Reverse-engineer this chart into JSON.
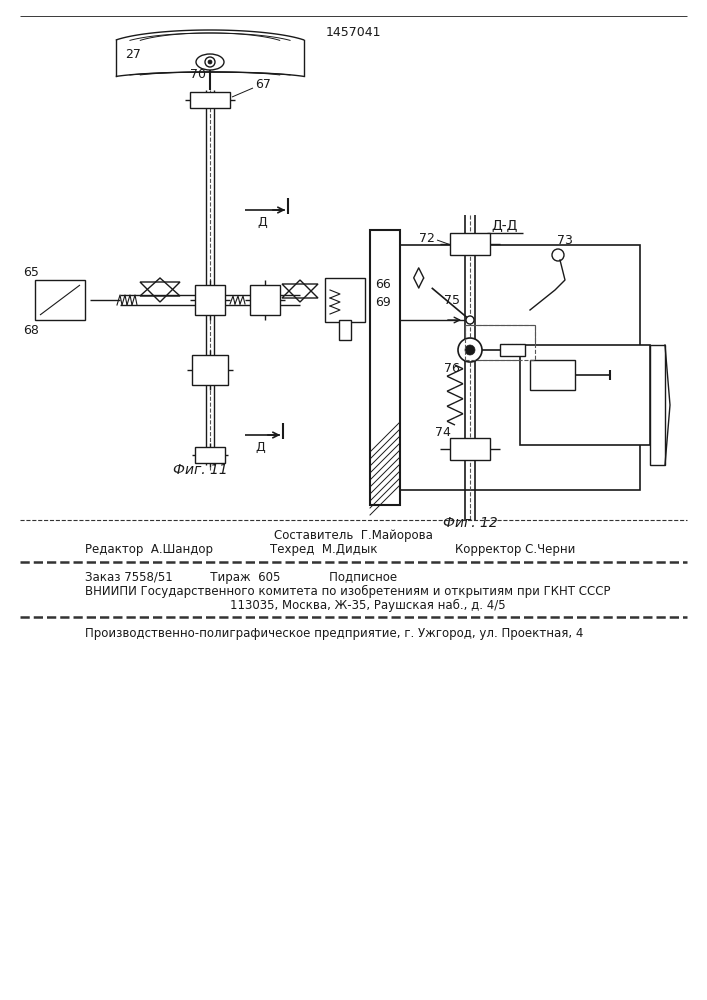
{
  "patent_number": "1457041",
  "fig11_label": "Фиг. 11",
  "fig12_label": "Фиг. 12",
  "section_label": "Д-Д",
  "section_arrow_label": "Д",
  "bg_color": "#ffffff",
  "line_color": "#1a1a1a",
  "footer_line1": "Составитель  Г.Майорова",
  "footer_line2_left": "Редактор  А.Шандор",
  "footer_line2_mid": "Техред  М.Дидык",
  "footer_line2_right": "Корректор С.Черни",
  "footer_line3": "Заказ 7558/51          Тираж  605             Подписное",
  "footer_line4": "ВНИИПИ Государственного комитета по изобретениям и открытиям при ГКНТ СССР",
  "footer_line5": "113035, Москва, Ж-35, Раушская наб., д. 4/5",
  "footer_line6": "Производственно-полиграфическое предприятие, г. Ужгород, ул. Проектная, 4",
  "label_27": "27",
  "label_70": "70",
  "label_67": "67",
  "label_65": "65",
  "label_68": "68",
  "label_66": "66",
  "label_69": "69",
  "label_72": "72",
  "label_73": "73",
  "label_74": "74",
  "label_75": "75",
  "label_76": "76"
}
